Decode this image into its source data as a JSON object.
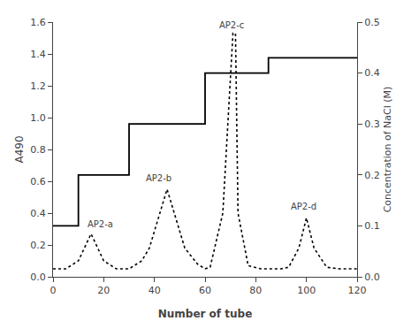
{
  "chart_data": {
    "type": "line",
    "xlabel": "Number of tube",
    "ylabel": "A490",
    "y2label": "Concentration of NaCl (M)",
    "xlim": [
      0,
      120
    ],
    "xticks": [
      0,
      20,
      40,
      60,
      80,
      100,
      120
    ],
    "ylim": [
      0.0,
      1.6
    ],
    "yticks": [
      {
        "value": 0.0,
        "label": "0.0"
      },
      0.2,
      0.4,
      0.6,
      0.8,
      {
        "value": 1.0,
        "label": "1.0"
      },
      1.2,
      1.4,
      1.6
    ],
    "y2lim": [
      0.0,
      0.5
    ],
    "y2ticks": [
      {
        "value": 0.0,
        "label": "0.0"
      },
      0.1,
      0.2,
      0.3,
      0.4,
      0.5
    ],
    "grid": false,
    "series": [
      {
        "axis": "y2",
        "color": "black",
        "line_style": "solid",
        "x": [
          0,
          10,
          10,
          30,
          30,
          60,
          60,
          85,
          85,
          120
        ],
        "values": [
          0.1,
          0.1,
          0.2,
          0.2,
          0.3,
          0.3,
          0.4,
          0.4,
          0.43,
          0.43
        ]
      },
      {
        "color": "black",
        "line_style": "dotted",
        "x": [
          0,
          5,
          10,
          15,
          20,
          25,
          28,
          30,
          35,
          38,
          45,
          52,
          57,
          60,
          62,
          67,
          71,
          72,
          73,
          77,
          82,
          87,
          90,
          93,
          97,
          100,
          103,
          108,
          113,
          120
        ],
        "values": [
          0.05,
          0.05,
          0.1,
          0.27,
          0.1,
          0.05,
          0.05,
          0.05,
          0.1,
          0.18,
          0.55,
          0.18,
          0.08,
          0.05,
          0.06,
          0.4,
          1.53,
          1.53,
          0.4,
          0.07,
          0.05,
          0.05,
          0.05,
          0.06,
          0.18,
          0.37,
          0.18,
          0.06,
          0.05,
          0.05
        ]
      }
    ],
    "annotations": [
      {
        "text": "AP2-a",
        "x": 13,
        "y": 0.29
      },
      {
        "text": "AP2-b",
        "x": 36,
        "y": 0.58
      },
      {
        "text": "AP2-c",
        "x": 65,
        "y": 1.54
      },
      {
        "text": "AP2-d",
        "x": 93,
        "y": 0.4
      }
    ]
  }
}
